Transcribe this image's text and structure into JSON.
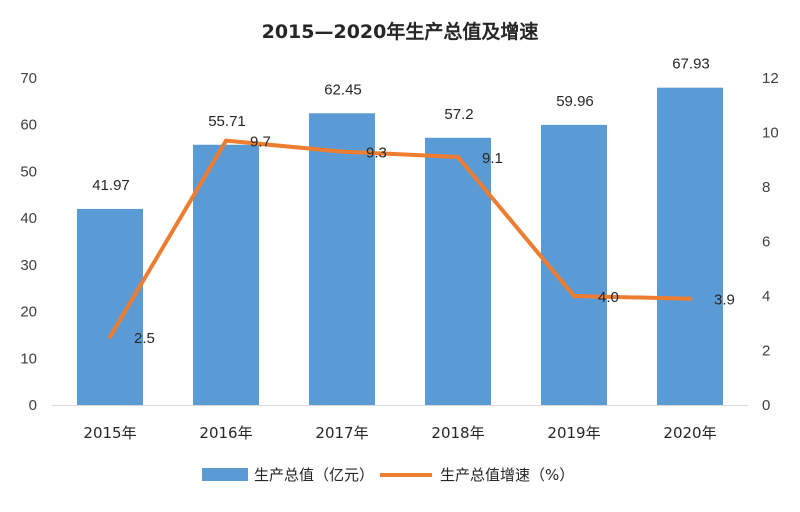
{
  "chart_data": {
    "type": "bar",
    "title": "2015—2020年生产总值及增速",
    "categories": [
      "2015年",
      "2016年",
      "2017年",
      "2018年",
      "2019年",
      "2020年"
    ],
    "series": [
      {
        "name": "生产总值（亿元）",
        "type": "bar",
        "axis": "left",
        "values": [
          41.97,
          55.71,
          62.45,
          57.2,
          59.96,
          67.93
        ],
        "labels": [
          "41.97",
          "55.71",
          "62.45",
          "57.2",
          "59.96",
          "67.93"
        ],
        "color": "#5B9BD5"
      },
      {
        "name": "生产总值增速（%）",
        "type": "line",
        "axis": "right",
        "values": [
          2.5,
          9.7,
          9.3,
          9.1,
          4.0,
          3.9
        ],
        "labels": [
          "2.5",
          "9.7",
          "9.3",
          "9.1",
          "4.0",
          "3.9"
        ],
        "color": "#ED7D31"
      }
    ],
    "y_left": {
      "min": 0,
      "max": 70,
      "ticks": [
        "0",
        "10",
        "20",
        "30",
        "40",
        "50",
        "60",
        "70"
      ]
    },
    "y_right": {
      "min": 0,
      "max": 12,
      "ticks": [
        "0",
        "2",
        "4",
        "6",
        "8",
        "10",
        "12"
      ]
    },
    "grid": false,
    "legend_position": "bottom"
  }
}
